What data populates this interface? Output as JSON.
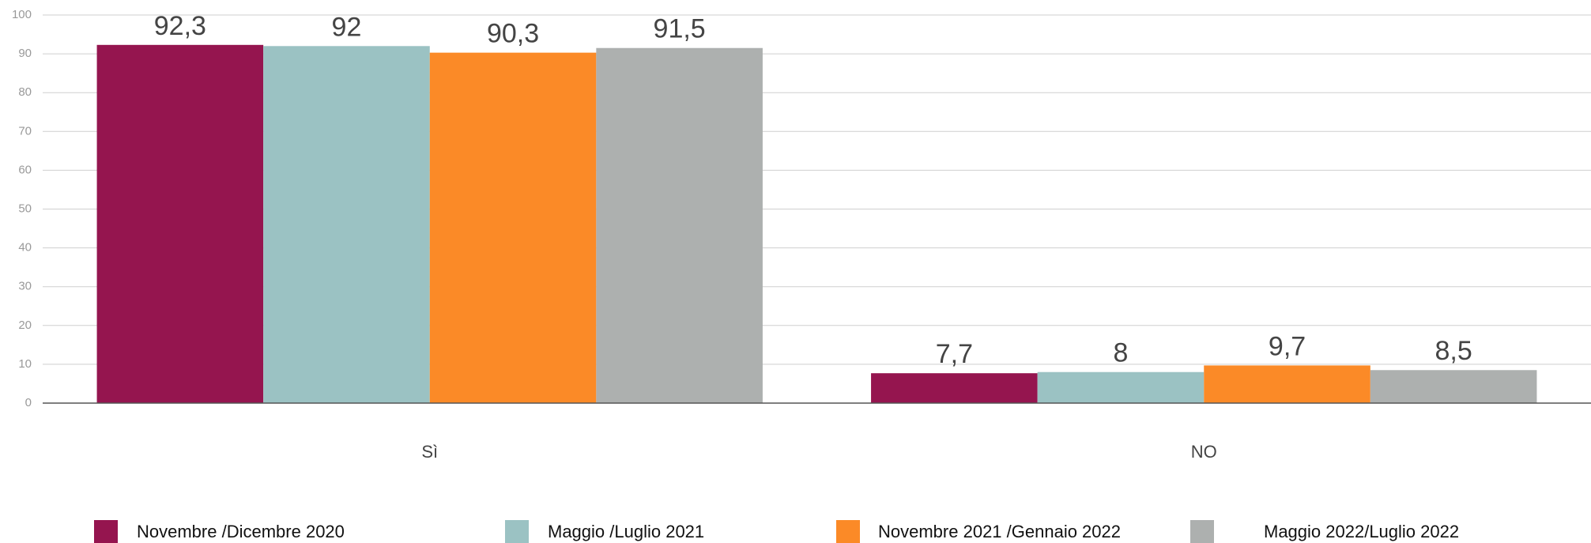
{
  "chart_data": {
    "type": "bar",
    "categories": [
      "Sì",
      "NO"
    ],
    "series": [
      {
        "name": "Novembre /Dicembre 2020",
        "color": "#95154f",
        "values": [
          92.3,
          7.7
        ],
        "value_labels": [
          "92,3",
          "7,7"
        ]
      },
      {
        "name": "Maggio /Luglio 2021",
        "color": "#9bc2c3",
        "values": [
          92,
          8
        ],
        "value_labels": [
          "92",
          "8"
        ]
      },
      {
        "name": "Novembre 2021 /Gennaio 2022",
        "color": "#fb8a27",
        "values": [
          90.3,
          9.7
        ],
        "value_labels": [
          "90,3",
          "9,7"
        ]
      },
      {
        "name": "Maggio 2022/Luglio 2022",
        "color": "#adb0af",
        "values": [
          91.5,
          8.5
        ],
        "value_labels": [
          "91,5",
          "8,5"
        ]
      }
    ],
    "ylim": [
      0,
      100
    ],
    "yticks": [
      0,
      10,
      20,
      30,
      40,
      50,
      60,
      70,
      80,
      90,
      100
    ],
    "grid": true,
    "legend": "bottom"
  }
}
